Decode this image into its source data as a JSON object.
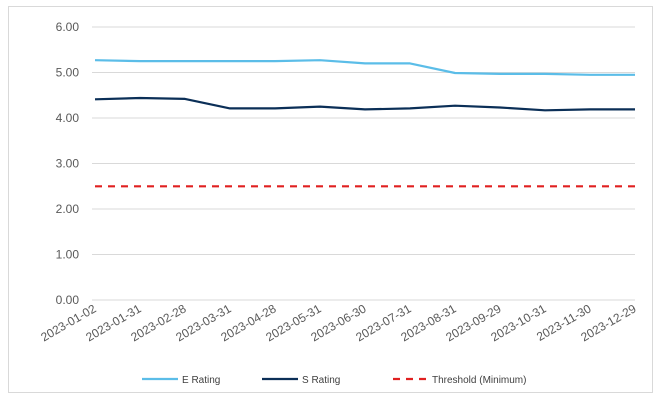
{
  "chart_data": {
    "type": "line",
    "title": "",
    "xlabel": "",
    "ylabel": "",
    "categories": [
      "2023-01-02",
      "2023-01-31",
      "2023-02-28",
      "2023-03-31",
      "2023-04-28",
      "2023-05-31",
      "2023-06-30",
      "2023-07-31",
      "2023-08-31",
      "2023-09-29",
      "2023-10-31",
      "2023-11-30",
      "2023-12-29"
    ],
    "y_ticks": [
      "0.00",
      "1.00",
      "2.00",
      "3.00",
      "4.00",
      "5.00",
      "6.00"
    ],
    "ylim": [
      0,
      6
    ],
    "grid": "horizontal",
    "legend_position": "bottom",
    "series": [
      {
        "name": "E Rating",
        "color": "#5bbde8",
        "style": "solid",
        "values": [
          5.27,
          5.25,
          5.25,
          5.25,
          5.25,
          5.27,
          5.2,
          5.2,
          4.99,
          4.97,
          4.97,
          4.95,
          4.95
        ]
      },
      {
        "name": "S Rating",
        "color": "#0b2f57",
        "style": "solid",
        "values": [
          4.41,
          4.44,
          4.42,
          4.21,
          4.21,
          4.25,
          4.19,
          4.21,
          4.27,
          4.23,
          4.17,
          4.19,
          4.19
        ]
      },
      {
        "name": "Threshold (Minimum)",
        "color": "#e02020",
        "style": "dashed",
        "values": [
          2.5,
          2.5,
          2.5,
          2.5,
          2.5,
          2.5,
          2.5,
          2.5,
          2.5,
          2.5,
          2.5,
          2.5,
          2.5
        ]
      }
    ]
  }
}
